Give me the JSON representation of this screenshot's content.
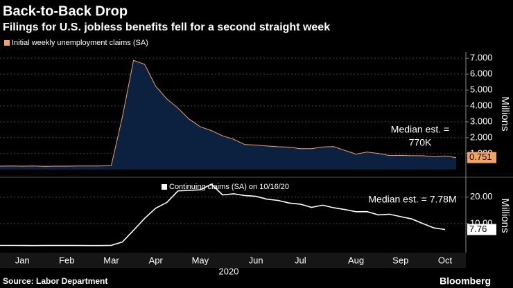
{
  "title": "Back-to-Back Drop",
  "subtitle": "Filings for U.S. jobless benefits fell for a second straight week",
  "footer": {
    "source": "Source: Labor Department",
    "brand": "Bloomberg"
  },
  "chart_data": [
    {
      "type": "area",
      "series": [
        {
          "name": "Initial weekly unemployment claims (SA)",
          "color": "#f4a460",
          "fill": "#0c2140",
          "values": [
            0.21,
            0.22,
            0.21,
            0.22,
            0.2,
            0.21,
            0.21,
            0.22,
            0.22,
            0.22,
            0.25,
            3.31,
            6.87,
            6.62,
            5.24,
            4.44,
            3.86,
            3.17,
            2.69,
            2.45,
            2.12,
            1.9,
            1.57,
            1.54,
            1.48,
            1.43,
            1.41,
            1.31,
            1.31,
            1.42,
            1.44,
            1.2,
            0.97,
            1.1,
            1.01,
            0.88,
            0.89,
            0.87,
            0.87,
            0.8,
            0.85,
            0.751
          ]
        }
      ],
      "ylim": [
        -0.4,
        7.4
      ],
      "yticks": [
        {
          "value": 1,
          "label": "1.000"
        },
        {
          "value": 2,
          "label": "2.000"
        },
        {
          "value": 3,
          "label": "3.000"
        },
        {
          "value": 4,
          "label": "4.000"
        },
        {
          "value": 5,
          "label": "5.000"
        },
        {
          "value": 6,
          "label": "6.000"
        },
        {
          "value": 7,
          "label": "7.000"
        }
      ],
      "ylabel": "Millions",
      "annotation": [
        "Median est. =",
        "770K"
      ],
      "grid": true
    },
    {
      "type": "line",
      "categories": [
        null,
        null,
        "Jan",
        null,
        null,
        null,
        "Feb",
        null,
        null,
        null,
        "Mar",
        null,
        null,
        null,
        "Apr",
        null,
        null,
        null,
        "May",
        null,
        null,
        null,
        null,
        "Jun",
        null,
        null,
        null,
        "Jul",
        null,
        null,
        null,
        null,
        "Aug",
        null,
        null,
        null,
        "Sep",
        null,
        null,
        null,
        "Oct",
        null
      ],
      "xlabel": "2020",
      "series": [
        {
          "name": "Continuing claims (SA) on 10/16/20",
          "color": "#ffffff",
          "values": [
            1.75,
            1.76,
            1.73,
            1.7,
            1.72,
            1.72,
            1.73,
            1.72,
            1.7,
            1.7,
            1.78,
            3.06,
            7.45,
            11.98,
            15.82,
            18.01,
            22.38,
            22.55,
            22.77,
            24.91,
            20.84,
            21.27,
            20.61,
            20.29,
            19.23,
            18.76,
            17.76,
            17.34,
            16.15,
            16.95,
            15.99,
            15.3,
            14.49,
            14.53,
            13.29,
            13.54,
            12.63,
            11.77,
            10.02,
            8.37,
            7.76,
            null
          ]
        }
      ],
      "ylim": [
        -1,
        27
      ],
      "yticks": [
        {
          "value": 10,
          "label": "10.00"
        },
        {
          "value": 20,
          "label": "20.00"
        }
      ],
      "ylabel": "Millions",
      "annotation": [
        "Median est. = 7.78M"
      ],
      "grid": true
    }
  ]
}
